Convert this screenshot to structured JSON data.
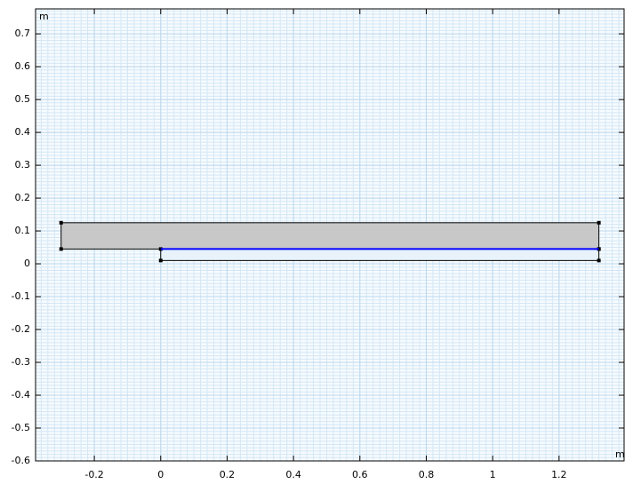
{
  "plot": {
    "x_unit": "m",
    "y_unit": "m",
    "xlim": [
      -0.377,
      1.396
    ],
    "ylim": [
      -0.6,
      0.776
    ],
    "xticks": [
      -0.2,
      0,
      0.2,
      0.4,
      0.6,
      0.8,
      1,
      1.2
    ],
    "yticks": [
      -0.6,
      -0.5,
      -0.4,
      -0.3,
      -0.2,
      -0.1,
      0,
      0.1,
      0.2,
      0.3,
      0.4,
      0.5,
      0.6,
      0.7
    ],
    "domains": [
      {
        "x": [
          -0.3,
          1.32
        ],
        "y": [
          0.045,
          0.125
        ],
        "color": "#c8c8c8"
      },
      {
        "x": [
          0,
          1.32
        ],
        "y": [
          0.01,
          0.045
        ],
        "color": "#e8f2fa"
      }
    ],
    "edges": [
      {
        "x": [
          0,
          1.32
        ],
        "y": [
          0.045,
          0.045
        ],
        "color": "#0000ff"
      }
    ]
  }
}
